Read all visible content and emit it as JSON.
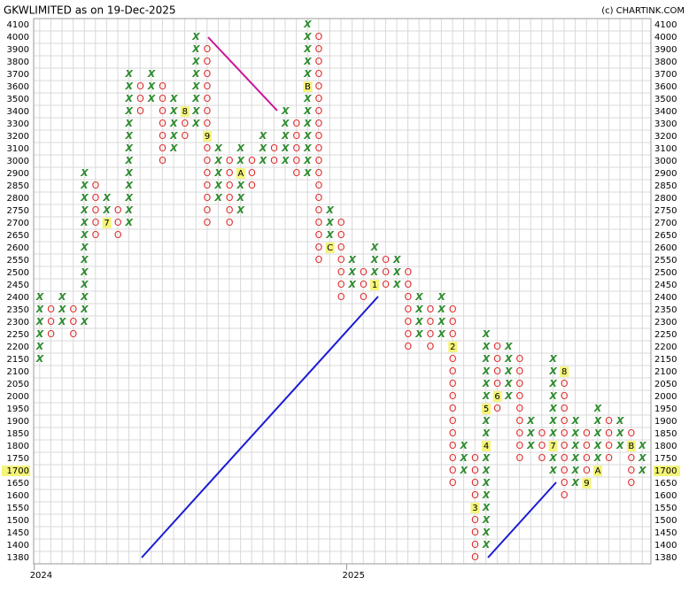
{
  "chart_data": {
    "type": "point-and-figure",
    "title": "GKWLIMITED as on 19-Dec-2025",
    "credit": "(c) CHARTINK.COM",
    "last": 1700,
    "x_color": "#2e8b2e",
    "o_color": "#e02828",
    "yticks": [
      4100,
      4000,
      3900,
      3800,
      3700,
      3600,
      3500,
      3400,
      3300,
      3200,
      3100,
      3000,
      2900,
      2850,
      2800,
      2750,
      2700,
      2650,
      2600,
      2550,
      2500,
      2450,
      2400,
      2350,
      2300,
      2250,
      2200,
      2150,
      2100,
      2050,
      2000,
      1950,
      1900,
      1850,
      1800,
      1750,
      1700,
      1650,
      1600,
      1550,
      1500,
      1450,
      1400,
      1380
    ],
    "columns": [
      {
        "kind": "X",
        "top": 2400,
        "bottom": 2150,
        "year": "2024"
      },
      {
        "kind": "O",
        "top": 2350,
        "bottom": 2250
      },
      {
        "kind": "X",
        "top": 2400,
        "bottom": 2300
      },
      {
        "kind": "O",
        "top": 2350,
        "bottom": 2250
      },
      {
        "kind": "X",
        "top": 2900,
        "bottom": 2300
      },
      {
        "kind": "O",
        "top": 2850,
        "bottom": 2650
      },
      {
        "kind": "X",
        "top": 2800,
        "bottom": 2700,
        "marks": [
          {
            "level": 2700,
            "label": "7"
          }
        ]
      },
      {
        "kind": "O",
        "top": 2750,
        "bottom": 2650
      },
      {
        "kind": "X",
        "top": 3700,
        "bottom": 2700
      },
      {
        "kind": "O",
        "top": 3600,
        "bottom": 3400
      },
      {
        "kind": "X",
        "top": 3700,
        "bottom": 3500
      },
      {
        "kind": "O",
        "top": 3600,
        "bottom": 3000
      },
      {
        "kind": "X",
        "top": 3500,
        "bottom": 3100
      },
      {
        "kind": "O",
        "top": 3400,
        "bottom": 3200,
        "marks": [
          {
            "level": 3400,
            "label": "8"
          }
        ]
      },
      {
        "kind": "X",
        "top": 4000,
        "bottom": 3300
      },
      {
        "kind": "O",
        "top": 3900,
        "bottom": 2700,
        "marks": [
          {
            "level": 3200,
            "label": "9"
          }
        ]
      },
      {
        "kind": "X",
        "top": 3100,
        "bottom": 2800
      },
      {
        "kind": "O",
        "top": 3000,
        "bottom": 2700
      },
      {
        "kind": "X",
        "top": 3100,
        "bottom": 2750,
        "marks": [
          {
            "level": 2900,
            "label": "A"
          }
        ]
      },
      {
        "kind": "O",
        "top": 3000,
        "bottom": 2850
      },
      {
        "kind": "X",
        "top": 3200,
        "bottom": 3000
      },
      {
        "kind": "O",
        "top": 3100,
        "bottom": 3000
      },
      {
        "kind": "X",
        "top": 3400,
        "bottom": 3000
      },
      {
        "kind": "O",
        "top": 3300,
        "bottom": 2900
      },
      {
        "kind": "X",
        "top": 4100,
        "bottom": 2900,
        "marks": [
          {
            "level": 3600,
            "label": "B"
          }
        ]
      },
      {
        "kind": "O",
        "top": 4000,
        "bottom": 2550
      },
      {
        "kind": "X",
        "top": 2750,
        "bottom": 2600,
        "marks": [
          {
            "level": 2600,
            "label": "C"
          }
        ]
      },
      {
        "kind": "O",
        "top": 2700,
        "bottom": 2400
      },
      {
        "kind": "X",
        "top": 2550,
        "bottom": 2450,
        "year": "2025"
      },
      {
        "kind": "O",
        "top": 2500,
        "bottom": 2400
      },
      {
        "kind": "X",
        "top": 2600,
        "bottom": 2450,
        "marks": [
          {
            "level": 2450,
            "label": "1"
          }
        ]
      },
      {
        "kind": "O",
        "top": 2550,
        "bottom": 2450
      },
      {
        "kind": "X",
        "top": 2550,
        "bottom": 2450
      },
      {
        "kind": "O",
        "top": 2500,
        "bottom": 2200
      },
      {
        "kind": "X",
        "top": 2400,
        "bottom": 2250
      },
      {
        "kind": "O",
        "top": 2350,
        "bottom": 2200
      },
      {
        "kind": "X",
        "top": 2400,
        "bottom": 2250
      },
      {
        "kind": "O",
        "top": 2350,
        "bottom": 1650,
        "marks": [
          {
            "level": 2200,
            "label": "2"
          }
        ]
      },
      {
        "kind": "X",
        "top": 1800,
        "bottom": 1700
      },
      {
        "kind": "O",
        "top": 1750,
        "bottom": 1380,
        "marks": [
          {
            "level": 1550,
            "label": "3"
          }
        ]
      },
      {
        "kind": "X",
        "top": 2250,
        "bottom": 1400,
        "marks": [
          {
            "level": 1800,
            "label": "4"
          },
          {
            "level": 1950,
            "label": "5"
          }
        ]
      },
      {
        "kind": "O",
        "top": 2200,
        "bottom": 1950,
        "marks": [
          {
            "level": 2000,
            "label": "6"
          }
        ]
      },
      {
        "kind": "X",
        "top": 2200,
        "bottom": 2000
      },
      {
        "kind": "O",
        "top": 2150,
        "bottom": 1750
      },
      {
        "kind": "X",
        "top": 1900,
        "bottom": 1800
      },
      {
        "kind": "O",
        "top": 1850,
        "bottom": 1750
      },
      {
        "kind": "X",
        "top": 2150,
        "bottom": 1700,
        "marks": [
          {
            "level": 1800,
            "label": "7"
          }
        ]
      },
      {
        "kind": "O",
        "top": 2100,
        "bottom": 1600,
        "marks": [
          {
            "level": 2100,
            "label": "8"
          }
        ]
      },
      {
        "kind": "X",
        "top": 1900,
        "bottom": 1650
      },
      {
        "kind": "O",
        "top": 1850,
        "bottom": 1650,
        "marks": [
          {
            "level": 1650,
            "label": "9"
          }
        ]
      },
      {
        "kind": "X",
        "top": 1950,
        "bottom": 1700,
        "marks": [
          {
            "level": 1700,
            "label": "A"
          }
        ]
      },
      {
        "kind": "O",
        "top": 1900,
        "bottom": 1750
      },
      {
        "kind": "X",
        "top": 1900,
        "bottom": 1800
      },
      {
        "kind": "O",
        "top": 1850,
        "bottom": 1650,
        "marks": [
          {
            "level": 1800,
            "label": "B"
          }
        ]
      },
      {
        "kind": "X",
        "top": 1800,
        "bottom": 1700
      }
    ]
  }
}
